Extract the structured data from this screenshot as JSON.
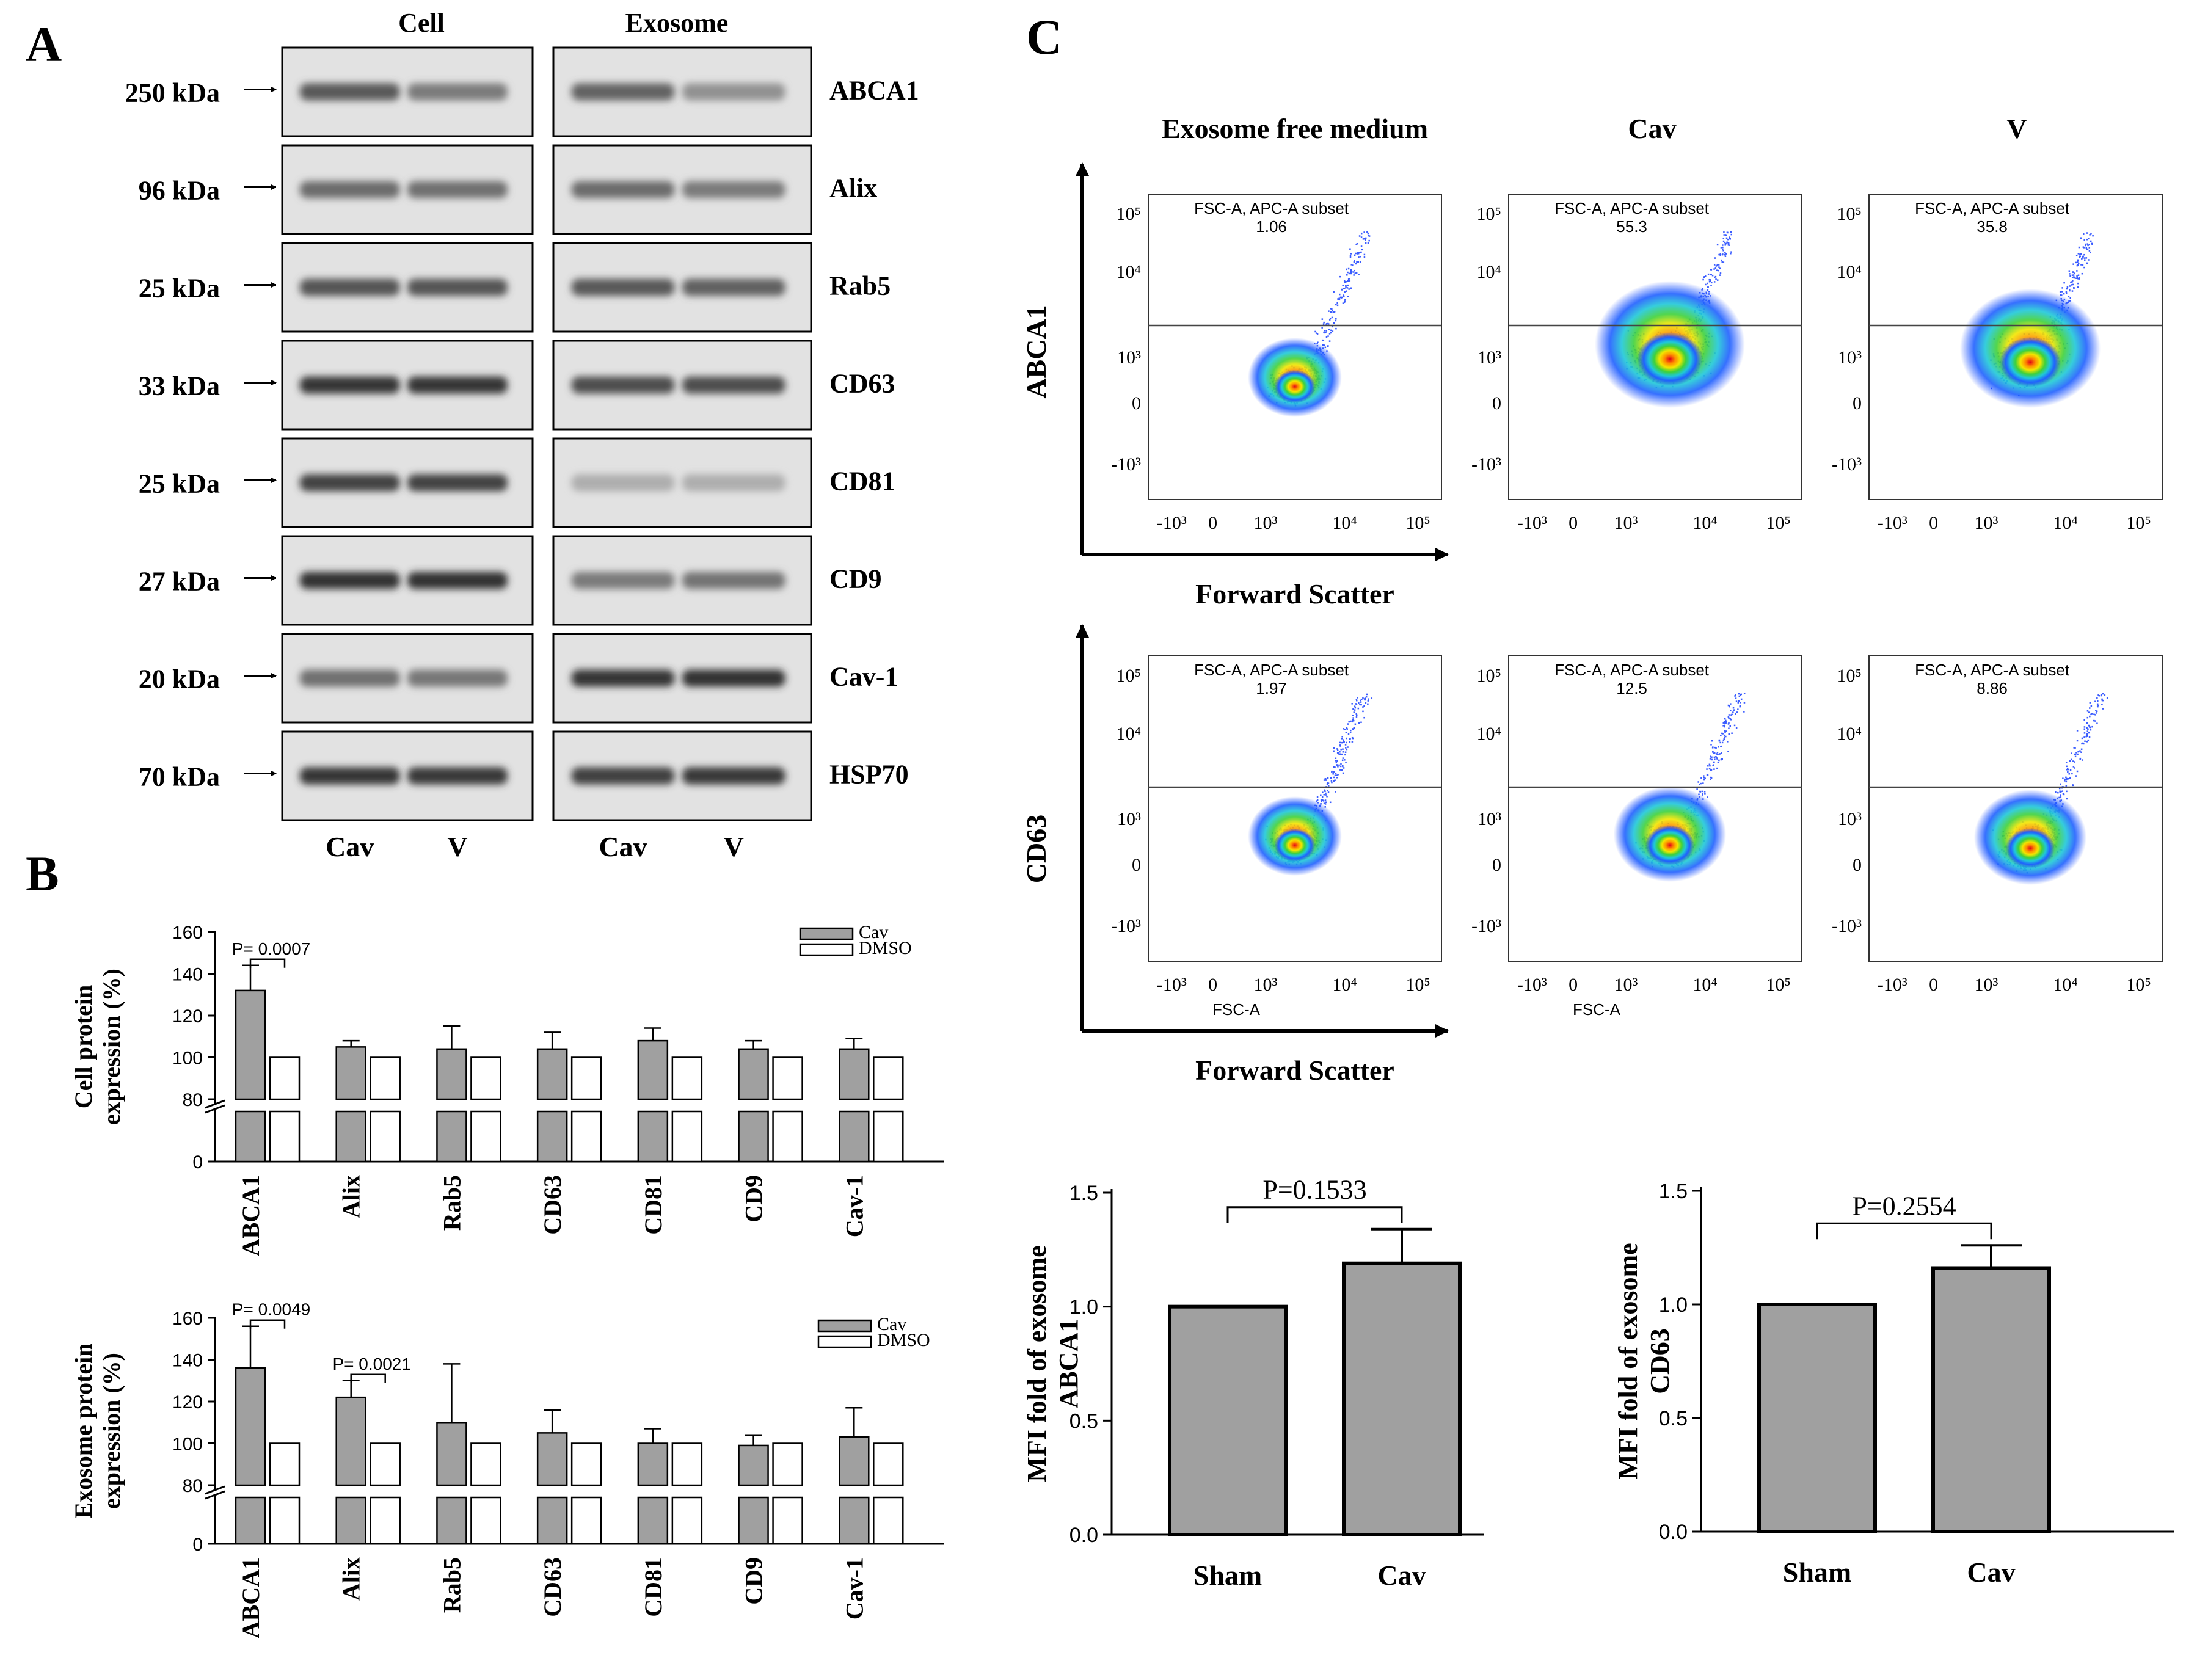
{
  "panel_labels": {
    "a": "A",
    "b": "B",
    "c": "C"
  },
  "blot": {
    "col_headers": [
      "Cell",
      "Exosome"
    ],
    "lane_labels": [
      "Cav",
      "V",
      "Cav",
      "V"
    ],
    "rows": [
      {
        "kda": "250 kDa",
        "protein": "ABCA1",
        "cell": [
          0.6,
          0.42
        ],
        "exo": [
          0.55,
          0.3
        ]
      },
      {
        "kda": "96 kDa",
        "protein": "Alix",
        "cell": [
          0.5,
          0.48
        ],
        "exo": [
          0.5,
          0.42
        ]
      },
      {
        "kda": "25 kDa",
        "protein": "Rab5",
        "cell": [
          0.62,
          0.62
        ],
        "exo": [
          0.6,
          0.56
        ]
      },
      {
        "kda": "33 kDa",
        "protein": "CD63",
        "cell": [
          0.8,
          0.8
        ],
        "exo": [
          0.66,
          0.66
        ]
      },
      {
        "kda": "25 kDa",
        "protein": "CD81",
        "cell": [
          0.72,
          0.72
        ],
        "exo": [
          0.14,
          0.14
        ]
      },
      {
        "kda": "27 kDa",
        "protein": "CD9",
        "cell": [
          0.82,
          0.82
        ],
        "exo": [
          0.42,
          0.46
        ]
      },
      {
        "kda": "20 kDa",
        "protein": "Cav-1",
        "cell": [
          0.48,
          0.44
        ],
        "exo": [
          0.8,
          0.82
        ]
      },
      {
        "kda": "70 kDa",
        "protein": "HSP70",
        "cell": [
          0.8,
          0.78
        ],
        "exo": [
          0.74,
          0.78
        ]
      }
    ]
  },
  "chart_data": [
    {
      "type": "bar",
      "ylabel_lines": [
        "Cell protein",
        "expression (%)"
      ],
      "categories": [
        "ABCA1",
        "Alix",
        "Rab5",
        "CD63",
        "CD81",
        "CD9",
        "Cav-1"
      ],
      "series": [
        {
          "name": "Cav",
          "values": [
            132,
            105,
            104,
            104,
            108,
            104,
            104
          ],
          "errors": [
            12,
            3,
            11,
            8,
            6,
            4,
            5
          ],
          "color": "#a0a0a0"
        },
        {
          "name": "DMSO",
          "values": [
            100,
            100,
            100,
            100,
            100,
            100,
            100
          ],
          "errors": [
            0,
            0,
            0,
            0,
            0,
            0,
            0
          ],
          "color": "#ffffff"
        }
      ],
      "yticks": [
        0,
        80,
        100,
        120,
        140,
        160
      ],
      "ylim": [
        0,
        160
      ],
      "axis_break": [
        20,
        80
      ],
      "annotations": [
        {
          "category": "ABCA1",
          "text": "P= 0.0007"
        }
      ],
      "legend": "top-right"
    },
    {
      "type": "bar",
      "ylabel_lines": [
        "Exosome protein",
        "expression (%)"
      ],
      "categories": [
        "ABCA1",
        "Alix",
        "Rab5",
        "CD63",
        "CD81",
        "CD9",
        "Cav-1"
      ],
      "series": [
        {
          "name": "Cav",
          "values": [
            136,
            122,
            110,
            105,
            100,
            99,
            103
          ],
          "errors": [
            20,
            8,
            28,
            11,
            7,
            5,
            14
          ],
          "color": "#a0a0a0"
        },
        {
          "name": "DMSO",
          "values": [
            100,
            100,
            100,
            100,
            100,
            100,
            100
          ],
          "errors": [
            0,
            0,
            0,
            0,
            0,
            0,
            0
          ],
          "color": "#ffffff"
        }
      ],
      "yticks": [
        0,
        80,
        100,
        120,
        140,
        160
      ],
      "ylim": [
        0,
        160
      ],
      "axis_break": [
        20,
        80
      ],
      "annotations": [
        {
          "category": "ABCA1",
          "text": "P= 0.0049"
        },
        {
          "category": "Alix",
          "text": "P= 0.0021"
        }
      ],
      "legend": "top-right"
    },
    {
      "type": "scatter",
      "subtype": "flow-cytometry-density",
      "column_titles": [
        "Exosome free medium",
        "Cav",
        "V"
      ],
      "row_labels": [
        "ABCA1",
        "CD63"
      ],
      "x_axis_label": "Forward Scatter",
      "gate_label": "FSC-A, APC-A subset",
      "xaxis_title": "FSC-A",
      "tick_labels": [
        "-10³",
        "0",
        "10³",
        "10⁴",
        "10⁵"
      ],
      "gate_values": [
        [
          "1.06",
          "55.3",
          "35.8"
        ],
        [
          "1.97",
          "12.5",
          "8.86"
        ]
      ],
      "population_center_x": [
        [
          0.5,
          0.55,
          0.55
        ],
        [
          0.5,
          0.55,
          0.55
        ]
      ],
      "population_center_y": [
        [
          0.63,
          0.54,
          0.55
        ],
        [
          0.62,
          0.62,
          0.63
        ]
      ],
      "population_spread": [
        [
          0.1,
          0.16,
          0.15
        ],
        [
          0.1,
          0.12,
          0.12
        ]
      ]
    },
    {
      "type": "bar",
      "ylabel_lines": [
        "MFI  fold  of   exosome",
        "ABCA1"
      ],
      "categories": [
        "Sham",
        "Cav"
      ],
      "values": [
        1.0,
        1.19
      ],
      "errors": [
        0,
        0.15
      ],
      "yticks": [
        "0.0",
        "0.5",
        "1.0",
        "1.5"
      ],
      "ylim": [
        0,
        1.5
      ],
      "annotation": "P=0.1533",
      "color": "#a0a0a0"
    },
    {
      "type": "bar",
      "ylabel_lines": [
        "MFI fold of   exosome",
        "CD63"
      ],
      "categories": [
        "Sham",
        "Cav"
      ],
      "values": [
        1.0,
        1.16
      ],
      "errors": [
        0,
        0.1
      ],
      "yticks": [
        "0.0",
        "0.5",
        "1.0",
        "1.5"
      ],
      "ylim": [
        0,
        1.5
      ],
      "annotation": "P=0.2554",
      "color": "#a0a0a0"
    }
  ]
}
